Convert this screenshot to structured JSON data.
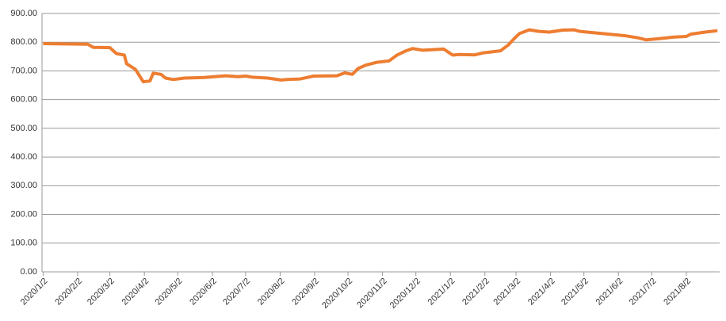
{
  "chart_data": {
    "type": "line",
    "x": [
      "2020/1/2",
      "2020/1/20",
      "2020/2/11",
      "2020/2/16",
      "2020/3/2",
      "2020/3/8",
      "2020/3/15",
      "2020/3/17",
      "2020/3/25",
      "2020/4/1",
      "2020/4/7",
      "2020/4/10",
      "2020/4/17",
      "2020/4/21",
      "2020/4/28",
      "2020/5/8",
      "2020/5/26",
      "2020/6/14",
      "2020/6/25",
      "2020/7/2",
      "2020/7/8",
      "2020/7/22",
      "2020/8/3",
      "2020/8/8",
      "2020/8/20",
      "2020/9/1",
      "2020/9/22",
      "2020/9/29",
      "2020/10/6",
      "2020/10/11",
      "2020/10/18",
      "2020/10/28",
      "2020/11/8",
      "2020/11/15",
      "2020/11/22",
      "2020/11/29",
      "2020/12/8",
      "2020/12/27",
      "2021/1/4",
      "2021/1/10",
      "2021/1/24",
      "2021/2/1",
      "2021/2/16",
      "2021/2/23",
      "2021/3/1",
      "2021/3/5",
      "2021/3/14",
      "2021/3/22",
      "2021/4/1",
      "2021/4/13",
      "2021/4/23",
      "2021/4/28",
      "2021/5/5",
      "2021/5/19",
      "2021/6/9",
      "2021/6/20",
      "2021/6/27",
      "2021/7/8",
      "2021/7/22",
      "2021/8/2",
      "2021/8/6",
      "2021/8/19",
      "2021/8/30"
    ],
    "values": [
      795,
      794,
      793,
      782,
      781,
      760,
      755,
      725,
      705,
      662,
      665,
      692,
      688,
      675,
      670,
      675,
      677,
      683,
      680,
      682,
      678,
      675,
      668,
      670,
      672,
      682,
      683,
      693,
      688,
      708,
      720,
      730,
      735,
      755,
      768,
      778,
      772,
      776,
      755,
      757,
      756,
      763,
      770,
      790,
      815,
      830,
      843,
      838,
      835,
      842,
      843,
      838,
      835,
      830,
      822,
      815,
      808,
      812,
      818,
      820,
      828,
      835,
      840
    ],
    "color": "#ed7d31",
    "xlim": [
      "2020/1/1",
      "2021/9/1"
    ],
    "xticks": [
      "2020/1/2",
      "2020/2/2",
      "2020/3/2",
      "2020/4/2",
      "2020/5/2",
      "2020/6/2",
      "2020/7/2",
      "2020/8/2",
      "2020/9/2",
      "2020/10/2",
      "2020/11/2",
      "2020/12/2",
      "2021/1/2",
      "2021/2/2",
      "2021/3/2",
      "2021/4/2",
      "2021/5/2",
      "2021/6/2",
      "2021/7/2",
      "2021/8/2"
    ],
    "ylim": [
      0,
      900
    ],
    "yticks": [
      {
        "value": 0,
        "label": "0.00"
      },
      {
        "value": 100,
        "label": "100.00"
      },
      {
        "value": 200,
        "label": "200.00"
      },
      {
        "value": 300,
        "label": "300.00"
      },
      {
        "value": 400,
        "label": "400.00"
      },
      {
        "value": 500,
        "label": "500.00"
      },
      {
        "value": 600,
        "label": "600.00"
      },
      {
        "value": 700,
        "label": "700.00"
      },
      {
        "value": 800,
        "label": "800.00"
      },
      {
        "value": 900,
        "label": "900.00"
      }
    ],
    "grid": true
  }
}
